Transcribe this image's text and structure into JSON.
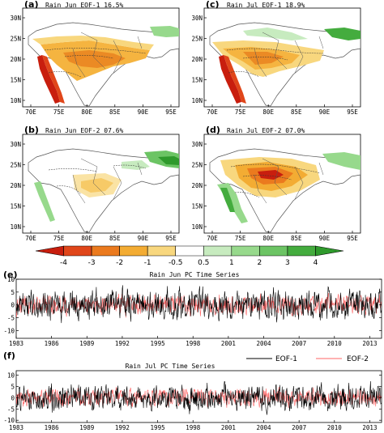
{
  "maps": {
    "a": {
      "letter": "(a)",
      "title": "Rain Jun EOF-1 16.5%"
    },
    "b": {
      "letter": "(b)",
      "title": "Rain Jun EOF-2 07.6%"
    },
    "c": {
      "letter": "(c)",
      "title": "Rain Jul EOF-1 18.9%"
    },
    "d": {
      "letter": "(d)",
      "title": "Rain Jul EOF-2 07.0%"
    },
    "lon_ticks": [
      "70E",
      "75E",
      "80E",
      "85E",
      "90E",
      "95E"
    ],
    "lat_ticks": [
      "30N",
      "25N",
      "20N",
      "15N",
      "10N"
    ]
  },
  "colorbar": {
    "labels": [
      "-4",
      "-3",
      "-2",
      "-1",
      "-0.5",
      "0.5",
      "1",
      "2",
      "3",
      "4"
    ],
    "colors": [
      "#c81e0e",
      "#e0461a",
      "#eb7a1e",
      "#f3ac33",
      "#f8d77e",
      "#ffffff",
      "#c7ebbf",
      "#97d98c",
      "#6cc464",
      "#44ac3e",
      "#2f9a2c"
    ]
  },
  "ts": {
    "e": {
      "letter": "(e)",
      "title": "Rain Jun PC Time Series"
    },
    "f": {
      "letter": "(f)",
      "title": "Rain Jul PC Time Series"
    },
    "legend": {
      "eof1": "EOF-1",
      "eof2": "EOF-2"
    }
  },
  "chart_data": [
    {
      "type": "line",
      "title": "Rain Jun PC Time Series",
      "x_ticks": [
        "1983",
        "1986",
        "1989",
        "1992",
        "1995",
        "1998",
        "2001",
        "2004",
        "2007",
        "2010",
        "2013"
      ],
      "xlim": [
        1983,
        2014
      ],
      "ylim": [
        -13,
        10
      ],
      "y_ticks": [
        10,
        5,
        0,
        -5,
        -10
      ],
      "series": [
        {
          "name": "EOF-1",
          "color": "#000000"
        },
        {
          "name": "EOF-2",
          "color": "#ff6666"
        }
      ]
    },
    {
      "type": "line",
      "title": "Rain Jul PC Time Series",
      "x_ticks": [
        "1983",
        "1986",
        "1989",
        "1992",
        "1995",
        "1998",
        "2001",
        "2004",
        "2007",
        "2010",
        "2013"
      ],
      "xlim": [
        1983,
        2014
      ],
      "ylim": [
        -11,
        12
      ],
      "y_ticks": [
        10,
        5,
        0,
        -5,
        -10
      ],
      "series": [
        {
          "name": "EOF-1",
          "color": "#000000"
        },
        {
          "name": "EOF-2",
          "color": "#ff6666"
        }
      ]
    }
  ]
}
